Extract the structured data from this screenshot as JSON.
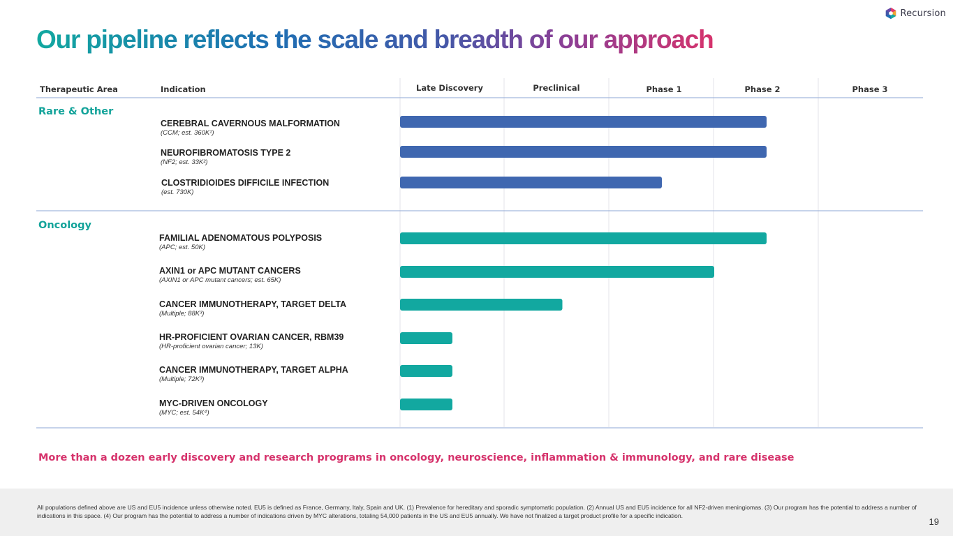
{
  "brand": {
    "name": "Recursion"
  },
  "title": "Our pipeline reflects the scale and breadth of our approach",
  "headers": {
    "therapeutic_area": "Therapeutic Area",
    "indication": "Indication",
    "stages": [
      "Late Discovery",
      "Preclinical",
      "Phase 1",
      "Phase 2",
      "Phase 3"
    ]
  },
  "chart_data": {
    "type": "bar",
    "orientation": "horizontal",
    "title": "Our pipeline reflects the scale and breadth of our approach",
    "stage_axis": [
      "Late Discovery",
      "Preclinical",
      "Phase 1",
      "Phase 2",
      "Phase 3"
    ],
    "value_units": "stages completed (0 = start of Late Discovery, 5 = end of Phase 3)",
    "xlim": [
      0,
      5
    ],
    "colors": {
      "Rare & Other": "#3f67b0",
      "Oncology": "#12a8a0"
    },
    "groups": [
      {
        "name": "Rare & Other",
        "items": [
          {
            "name": "CEREBRAL CAVERNOUS MALFORMATION",
            "sub": "(CCM; est. 360K¹)",
            "value": 3.5
          },
          {
            "name": "NEUROFIBROMATOSIS TYPE 2",
            "sub": "(NF2; est. 33K²)",
            "value": 3.5
          },
          {
            "name": "CLOSTRIDIOIDES DIFFICILE INFECTION",
            "sub": "(est. 730K)",
            "value": 2.5
          }
        ]
      },
      {
        "name": "Oncology",
        "items": [
          {
            "name": "FAMILIAL ADENOMATOUS POLYPOSIS",
            "sub": "(APC; est. 50K)",
            "value": 3.5
          },
          {
            "name": "AXIN1 or APC MUTANT CANCERS",
            "sub": "(AXIN1 or APC mutant cancers; est. 65K)",
            "value": 3.0
          },
          {
            "name": "CANCER IMMUNOTHERAPY, TARGET DELTA",
            "sub": "(Multiple; 88K³)",
            "value": 1.55
          },
          {
            "name": "HR-PROFICIENT OVARIAN CANCER, RBM39",
            "sub": "(HR-proficient ovarian cancer; 13K)",
            "value": 0.5
          },
          {
            "name": "CANCER IMMUNOTHERAPY, TARGET ALPHA",
            "sub": "(Multiple; 72K³)",
            "value": 0.5
          },
          {
            "name": "MYC-DRIVEN ONCOLOGY",
            "sub": "(MYC; est. 54K⁴)",
            "value": 0.5
          }
        ]
      }
    ]
  },
  "tagline": "More than a dozen early discovery and research programs in oncology, neuroscience, inflammation & immunology, and rare disease",
  "footnote": "All populations defined above are US and EU5 incidence unless otherwise noted. EU5 is defined as France, Germany, Italy, Spain and UK. (1) Prevalence for hereditary and sporadic symptomatic population. (2) Annual US and EU5 incidence for all NF2-driven meningiomas. (3) Our program has the potential to address a number of indications in this space. (4) Our program has the potential to address a number of indications driven by MYC alterations, totaling 54,000 patients in the US and EU5 annually. We have not finalized a target product profile for a specific indication.",
  "page_number": "19"
}
